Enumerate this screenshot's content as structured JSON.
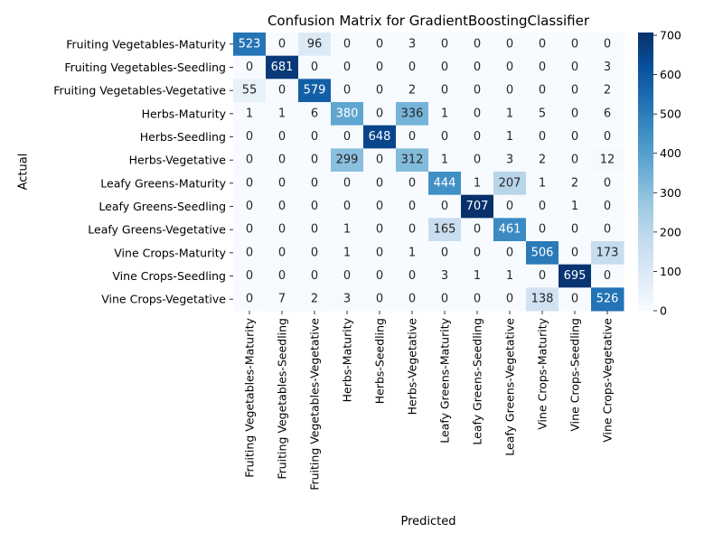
{
  "chart_data": {
    "type": "heatmap",
    "title": "Confusion Matrix for GradientBoostingClassifier",
    "xlabel": "Predicted",
    "ylabel": "Actual",
    "labels": [
      "Fruiting Vegetables-Maturity",
      "Fruiting Vegetables-Seedling",
      "Fruiting Vegetables-Vegetative",
      "Herbs-Maturity",
      "Herbs-Seedling",
      "Herbs-Vegetative",
      "Leafy Greens-Maturity",
      "Leafy Greens-Seedling",
      "Leafy Greens-Vegetative",
      "Vine Crops-Maturity",
      "Vine Crops-Seedling",
      "Vine Crops-Vegetative"
    ],
    "matrix": [
      [
        523,
        0,
        96,
        0,
        0,
        3,
        0,
        0,
        0,
        0,
        0,
        0
      ],
      [
        0,
        681,
        0,
        0,
        0,
        0,
        0,
        0,
        0,
        0,
        0,
        3
      ],
      [
        55,
        0,
        579,
        0,
        0,
        2,
        0,
        0,
        0,
        0,
        0,
        2
      ],
      [
        1,
        1,
        6,
        380,
        0,
        336,
        1,
        0,
        1,
        5,
        0,
        6
      ],
      [
        0,
        0,
        0,
        0,
        648,
        0,
        0,
        0,
        1,
        0,
        0,
        0
      ],
      [
        0,
        0,
        0,
        299,
        0,
        312,
        1,
        0,
        3,
        2,
        0,
        12
      ],
      [
        0,
        0,
        0,
        0,
        0,
        0,
        444,
        1,
        207,
        1,
        2,
        0
      ],
      [
        0,
        0,
        0,
        0,
        0,
        0,
        0,
        707,
        0,
        0,
        1,
        0
      ],
      [
        0,
        0,
        0,
        1,
        0,
        0,
        165,
        0,
        461,
        0,
        0,
        0
      ],
      [
        0,
        0,
        0,
        1,
        0,
        1,
        0,
        0,
        0,
        506,
        0,
        173
      ],
      [
        0,
        0,
        0,
        0,
        0,
        0,
        3,
        1,
        1,
        0,
        695,
        0
      ],
      [
        0,
        7,
        2,
        3,
        0,
        0,
        0,
        0,
        0,
        138,
        0,
        526
      ]
    ],
    "colormap": "Blues",
    "vmin": 0,
    "vmax": 707,
    "colorbar_ticks": [
      0,
      100,
      200,
      300,
      400,
      500,
      600,
      700
    ]
  }
}
